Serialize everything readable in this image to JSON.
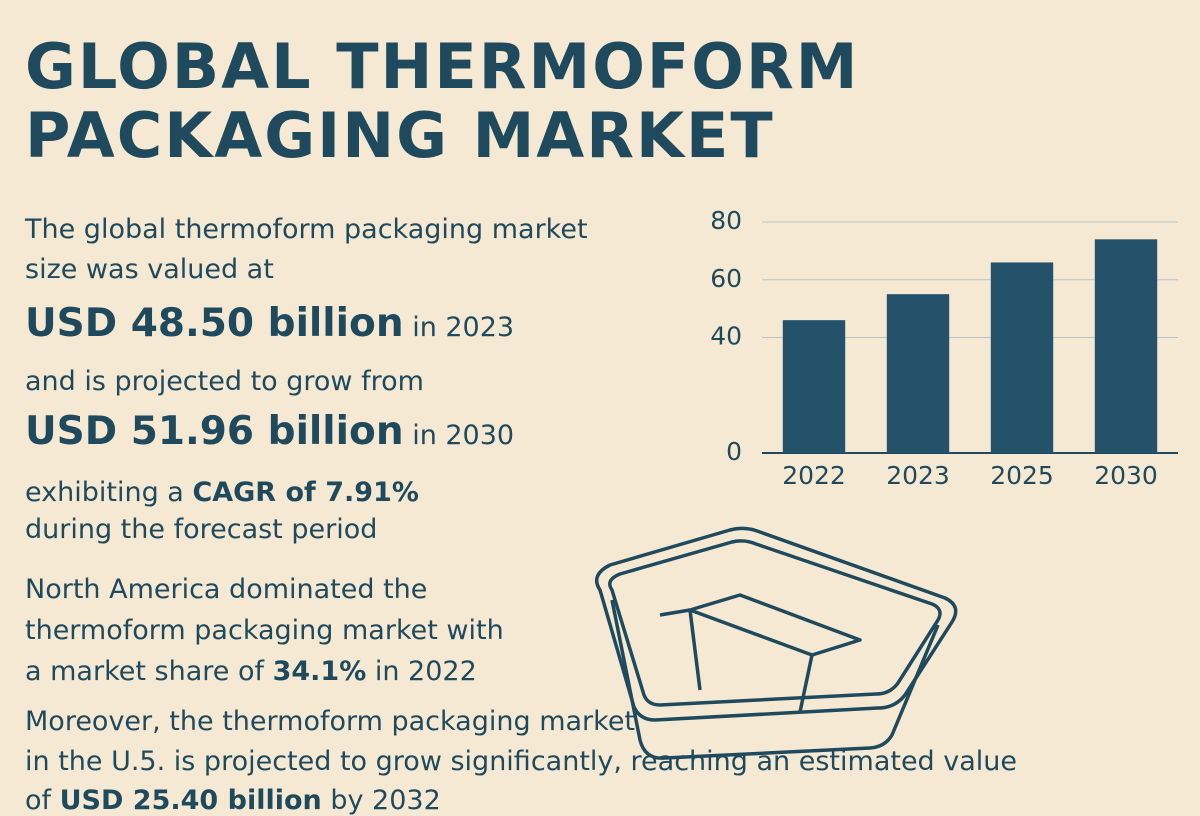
{
  "title": [
    "GLOBAL THERMOFORM",
    "PACKAGING MARKET"
  ],
  "intro": [
    "The global thermoform packaging market",
    "size was valued at"
  ],
  "stat_2023": {
    "amount": "USD 48.50 billion",
    "suffix": "in 2023"
  },
  "growth_intro": "and is projected to grow from",
  "stat_2030": {
    "amount": "USD 51.96 billion",
    "suffix": "in 2030"
  },
  "cagr": {
    "prefix": "exhibiting a",
    "bold": "CAGR of 7.91%",
    "line2": "during the forecast period"
  },
  "north_america": {
    "lines": [
      "North America dominated the",
      "thermoform packaging market with"
    ],
    "prefix": "a market share of",
    "bold": "34.1%",
    "suffix": "in 2022"
  },
  "us": {
    "lines": [
      "Moreover, the thermoform packaging market",
      "in the U.5. is projected to grow significantly, reaching an estimated value"
    ],
    "prefix": "of",
    "bold": "USD 25.40 billion",
    "suffix": "by 2032"
  },
  "chart_data": {
    "type": "bar",
    "categories": [
      "2022",
      "2023",
      "2025",
      "2030"
    ],
    "values": [
      46,
      55,
      66,
      74
    ],
    "color": "#24526a",
    "ylim": [
      0,
      80
    ],
    "yticks": [
      0,
      40,
      60,
      80
    ],
    "grid": true
  }
}
